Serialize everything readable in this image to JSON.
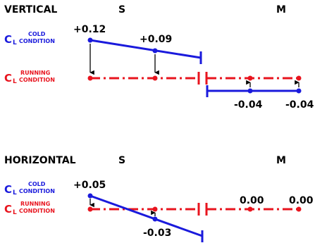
{
  "colors": {
    "cold": "#1a1adc",
    "running": "#e8141e",
    "arrow": "#000000",
    "text": "#000000"
  },
  "symbol": {
    "main": "C",
    "sub": "L"
  },
  "sections": [
    {
      "title": "VERTICAL",
      "label_s": "S",
      "label_m": "M",
      "cold_text": [
        "COLD",
        "CONDITION"
      ],
      "running_text": [
        "RUNNING",
        "CONDITION"
      ],
      "values": {
        "s_cold_1": "+0.12",
        "s_cold_2": "+0.09",
        "m_cold_1": "-0.04",
        "m_cold_2": "-0.04"
      }
    },
    {
      "title": "HORIZONTAL",
      "label_s": "S",
      "label_m": "M",
      "cold_text": [
        "COLD",
        "CONDITION"
      ],
      "running_text": [
        "RUNNING",
        "CONDITION"
      ],
      "values": {
        "s_cold_1": "+0.05",
        "s_cold_2": "-0.03",
        "m_cold_1": "0.00",
        "m_cold_2": "0.00"
      }
    }
  ]
}
